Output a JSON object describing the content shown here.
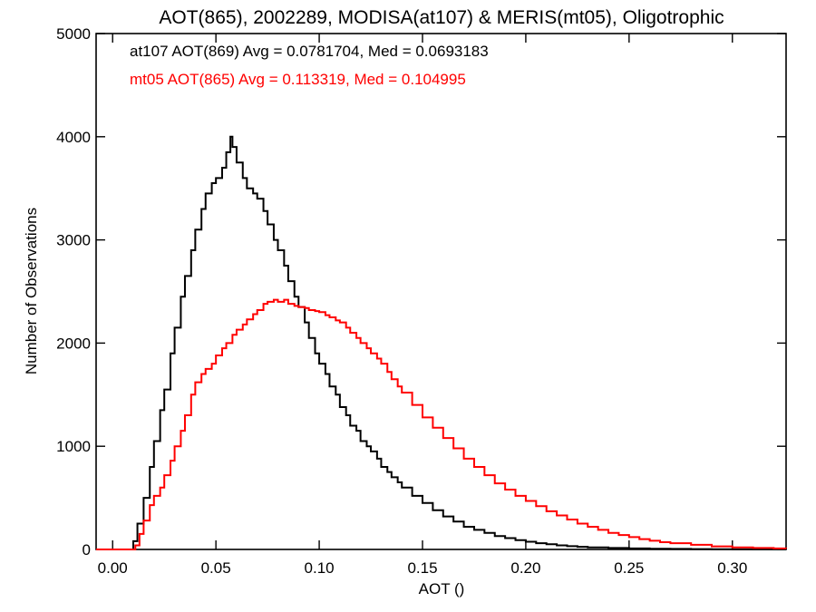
{
  "chart_data": {
    "type": "line",
    "title": "AOT(865), 2002289, MODISA(at107) & MERIS(mt05), Oligotrophic",
    "xlabel": "AOT ()",
    "ylabel": "Number of Observations",
    "xlim": [
      -0.008,
      0.326
    ],
    "ylim": [
      0,
      5000
    ],
    "x_ticks": [
      0.0,
      0.05,
      0.1,
      0.15,
      0.2,
      0.25,
      0.3
    ],
    "x_tick_labels": [
      "0.00",
      "0.05",
      "0.10",
      "0.15",
      "0.20",
      "0.25",
      "0.30"
    ],
    "y_ticks": [
      0,
      1000,
      2000,
      3000,
      4000,
      5000
    ],
    "y_tick_labels": [
      "0",
      "1000",
      "2000",
      "3000",
      "4000",
      "5000"
    ],
    "grid": false,
    "series": [
      {
        "name": "at107 AOT(869) Avg = 0.0781704, Med = 0.0693183",
        "color": "#000000",
        "points": [
          [
            -0.008,
            0
          ],
          [
            0.008,
            0
          ],
          [
            0.01,
            80
          ],
          [
            0.012,
            250
          ],
          [
            0.015,
            500
          ],
          [
            0.018,
            800
          ],
          [
            0.02,
            1050
          ],
          [
            0.023,
            1350
          ],
          [
            0.025,
            1550
          ],
          [
            0.028,
            1900
          ],
          [
            0.03,
            2150
          ],
          [
            0.033,
            2450
          ],
          [
            0.035,
            2650
          ],
          [
            0.038,
            2900
          ],
          [
            0.04,
            3100
          ],
          [
            0.043,
            3300
          ],
          [
            0.045,
            3450
          ],
          [
            0.048,
            3550
          ],
          [
            0.05,
            3600
          ],
          [
            0.053,
            3700
          ],
          [
            0.055,
            3850
          ],
          [
            0.057,
            4000
          ],
          [
            0.058,
            3900
          ],
          [
            0.06,
            3750
          ],
          [
            0.063,
            3600
          ],
          [
            0.065,
            3500
          ],
          [
            0.068,
            3450
          ],
          [
            0.07,
            3400
          ],
          [
            0.073,
            3280
          ],
          [
            0.075,
            3150
          ],
          [
            0.078,
            3000
          ],
          [
            0.08,
            2900
          ],
          [
            0.083,
            2750
          ],
          [
            0.085,
            2600
          ],
          [
            0.088,
            2450
          ],
          [
            0.09,
            2350
          ],
          [
            0.093,
            2200
          ],
          [
            0.095,
            2050
          ],
          [
            0.098,
            1900
          ],
          [
            0.1,
            1800
          ],
          [
            0.103,
            1700
          ],
          [
            0.105,
            1580
          ],
          [
            0.108,
            1500
          ],
          [
            0.11,
            1380
          ],
          [
            0.113,
            1300
          ],
          [
            0.115,
            1200
          ],
          [
            0.118,
            1150
          ],
          [
            0.12,
            1050
          ],
          [
            0.123,
            1000
          ],
          [
            0.125,
            950
          ],
          [
            0.128,
            880
          ],
          [
            0.13,
            800
          ],
          [
            0.133,
            750
          ],
          [
            0.135,
            700
          ],
          [
            0.138,
            650
          ],
          [
            0.14,
            600
          ],
          [
            0.145,
            520
          ],
          [
            0.15,
            450
          ],
          [
            0.155,
            380
          ],
          [
            0.16,
            320
          ],
          [
            0.165,
            270
          ],
          [
            0.17,
            220
          ],
          [
            0.175,
            190
          ],
          [
            0.18,
            160
          ],
          [
            0.185,
            130
          ],
          [
            0.19,
            110
          ],
          [
            0.195,
            90
          ],
          [
            0.2,
            75
          ],
          [
            0.205,
            60
          ],
          [
            0.21,
            50
          ],
          [
            0.215,
            40
          ],
          [
            0.22,
            32
          ],
          [
            0.225,
            25
          ],
          [
            0.23,
            20
          ],
          [
            0.24,
            14
          ],
          [
            0.25,
            10
          ],
          [
            0.26,
            7
          ],
          [
            0.27,
            5
          ],
          [
            0.28,
            3
          ],
          [
            0.29,
            2
          ],
          [
            0.3,
            1
          ],
          [
            0.326,
            0
          ]
        ]
      },
      {
        "name": "mt05 AOT(865) Avg = 0.113319, Med = 0.104995",
        "color": "#ff0000",
        "points": [
          [
            -0.008,
            0
          ],
          [
            0.009,
            0
          ],
          [
            0.011,
            40
          ],
          [
            0.013,
            150
          ],
          [
            0.015,
            280
          ],
          [
            0.018,
            430
          ],
          [
            0.02,
            520
          ],
          [
            0.023,
            600
          ],
          [
            0.025,
            720
          ],
          [
            0.028,
            860
          ],
          [
            0.03,
            1000
          ],
          [
            0.033,
            1150
          ],
          [
            0.035,
            1300
          ],
          [
            0.038,
            1500
          ],
          [
            0.04,
            1620
          ],
          [
            0.043,
            1700
          ],
          [
            0.045,
            1750
          ],
          [
            0.048,
            1800
          ],
          [
            0.05,
            1880
          ],
          [
            0.053,
            1950
          ],
          [
            0.055,
            2000
          ],
          [
            0.058,
            2080
          ],
          [
            0.06,
            2130
          ],
          [
            0.063,
            2180
          ],
          [
            0.065,
            2230
          ],
          [
            0.068,
            2280
          ],
          [
            0.07,
            2320
          ],
          [
            0.073,
            2380
          ],
          [
            0.075,
            2400
          ],
          [
            0.078,
            2420
          ],
          [
            0.08,
            2400
          ],
          [
            0.083,
            2420
          ],
          [
            0.085,
            2380
          ],
          [
            0.088,
            2360
          ],
          [
            0.09,
            2350
          ],
          [
            0.093,
            2340
          ],
          [
            0.095,
            2320
          ],
          [
            0.098,
            2310
          ],
          [
            0.1,
            2300
          ],
          [
            0.103,
            2270
          ],
          [
            0.105,
            2250
          ],
          [
            0.108,
            2220
          ],
          [
            0.11,
            2200
          ],
          [
            0.113,
            2150
          ],
          [
            0.115,
            2100
          ],
          [
            0.118,
            2050
          ],
          [
            0.12,
            2000
          ],
          [
            0.123,
            1950
          ],
          [
            0.125,
            1900
          ],
          [
            0.128,
            1850
          ],
          [
            0.13,
            1800
          ],
          [
            0.133,
            1720
          ],
          [
            0.135,
            1650
          ],
          [
            0.138,
            1580
          ],
          [
            0.14,
            1520
          ],
          [
            0.145,
            1400
          ],
          [
            0.15,
            1280
          ],
          [
            0.155,
            1180
          ],
          [
            0.16,
            1080
          ],
          [
            0.165,
            980
          ],
          [
            0.17,
            880
          ],
          [
            0.175,
            800
          ],
          [
            0.18,
            720
          ],
          [
            0.185,
            640
          ],
          [
            0.19,
            580
          ],
          [
            0.195,
            520
          ],
          [
            0.2,
            470
          ],
          [
            0.205,
            420
          ],
          [
            0.21,
            370
          ],
          [
            0.215,
            330
          ],
          [
            0.22,
            290
          ],
          [
            0.225,
            250
          ],
          [
            0.23,
            220
          ],
          [
            0.235,
            190
          ],
          [
            0.24,
            160
          ],
          [
            0.245,
            140
          ],
          [
            0.25,
            120
          ],
          [
            0.255,
            100
          ],
          [
            0.26,
            85
          ],
          [
            0.265,
            70
          ],
          [
            0.27,
            60
          ],
          [
            0.28,
            45
          ],
          [
            0.29,
            30
          ],
          [
            0.3,
            20
          ],
          [
            0.31,
            14
          ],
          [
            0.32,
            10
          ],
          [
            0.326,
            8
          ]
        ]
      }
    ]
  }
}
